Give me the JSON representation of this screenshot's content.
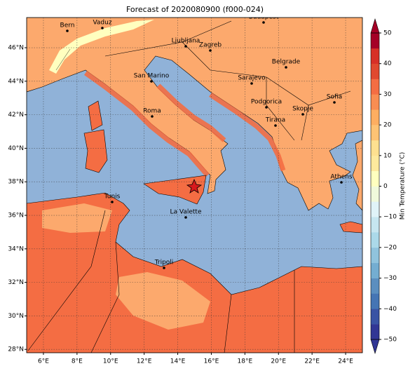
{
  "map": {
    "title": "Forecast of 2020080900 (f000-024)",
    "xticks": [
      {
        "value": 6,
        "label": "6°E"
      },
      {
        "value": 8,
        "label": "8°E"
      },
      {
        "value": 10,
        "label": "10°E"
      },
      {
        "value": 12,
        "label": "12°E"
      },
      {
        "value": 14,
        "label": "14°E"
      },
      {
        "value": 16,
        "label": "16°E"
      },
      {
        "value": 18,
        "label": "18°E"
      },
      {
        "value": 20,
        "label": "20°E"
      },
      {
        "value": 22,
        "label": "22°E"
      },
      {
        "value": 24,
        "label": "24°E"
      }
    ],
    "yticks": [
      {
        "value": 28,
        "label": "28°N"
      },
      {
        "value": 30,
        "label": "30°N"
      },
      {
        "value": 32,
        "label": "32°N"
      },
      {
        "value": 34,
        "label": "34°N"
      },
      {
        "value": 36,
        "label": "36°N"
      },
      {
        "value": 38,
        "label": "38°N"
      },
      {
        "value": 40,
        "label": "40°N"
      },
      {
        "value": 42,
        "label": "42°N"
      },
      {
        "value": 44,
        "label": "44°N"
      },
      {
        "value": 46,
        "label": "46°N"
      }
    ],
    "xlim": [
      5,
      25
    ],
    "ylim": [
      27.8,
      47.8
    ],
    "grid": true,
    "cities": [
      "Bern",
      "Vaduz",
      "Budapest",
      "Ljubljana",
      "Zagreb",
      "Belgrade",
      "San Marino",
      "Sarajevo",
      "Sofia",
      "Podgorica",
      "Skopje",
      "Roma",
      "Tirana",
      "Athens",
      "Tunis",
      "La Valette",
      "Tripoli"
    ],
    "colorbar": {
      "label": "Min Temperature (°C)",
      "ticks": [
        {
          "value": -50,
          "label": "−50"
        },
        {
          "value": -40,
          "label": "−40"
        },
        {
          "value": -30,
          "label": "−30"
        },
        {
          "value": -20,
          "label": "−20"
        },
        {
          "value": -10,
          "label": "−10"
        },
        0,
        10,
        20,
        30,
        40,
        50
      ],
      "colors": [
        "#313695",
        "#3953a4",
        "#4575b4",
        "#5b8ebf",
        "#74add1",
        "#90c3dd",
        "#abd9e9",
        "#c6e6f0",
        "#e0f3f8",
        "#f0f9db",
        "#ffffbf",
        "#fee99d",
        "#fee090",
        "#fdc374",
        "#fdae61",
        "#f88d52",
        "#f46d43",
        "#e0492f",
        "#d73027",
        "#a50026"
      ]
    }
  }
}
